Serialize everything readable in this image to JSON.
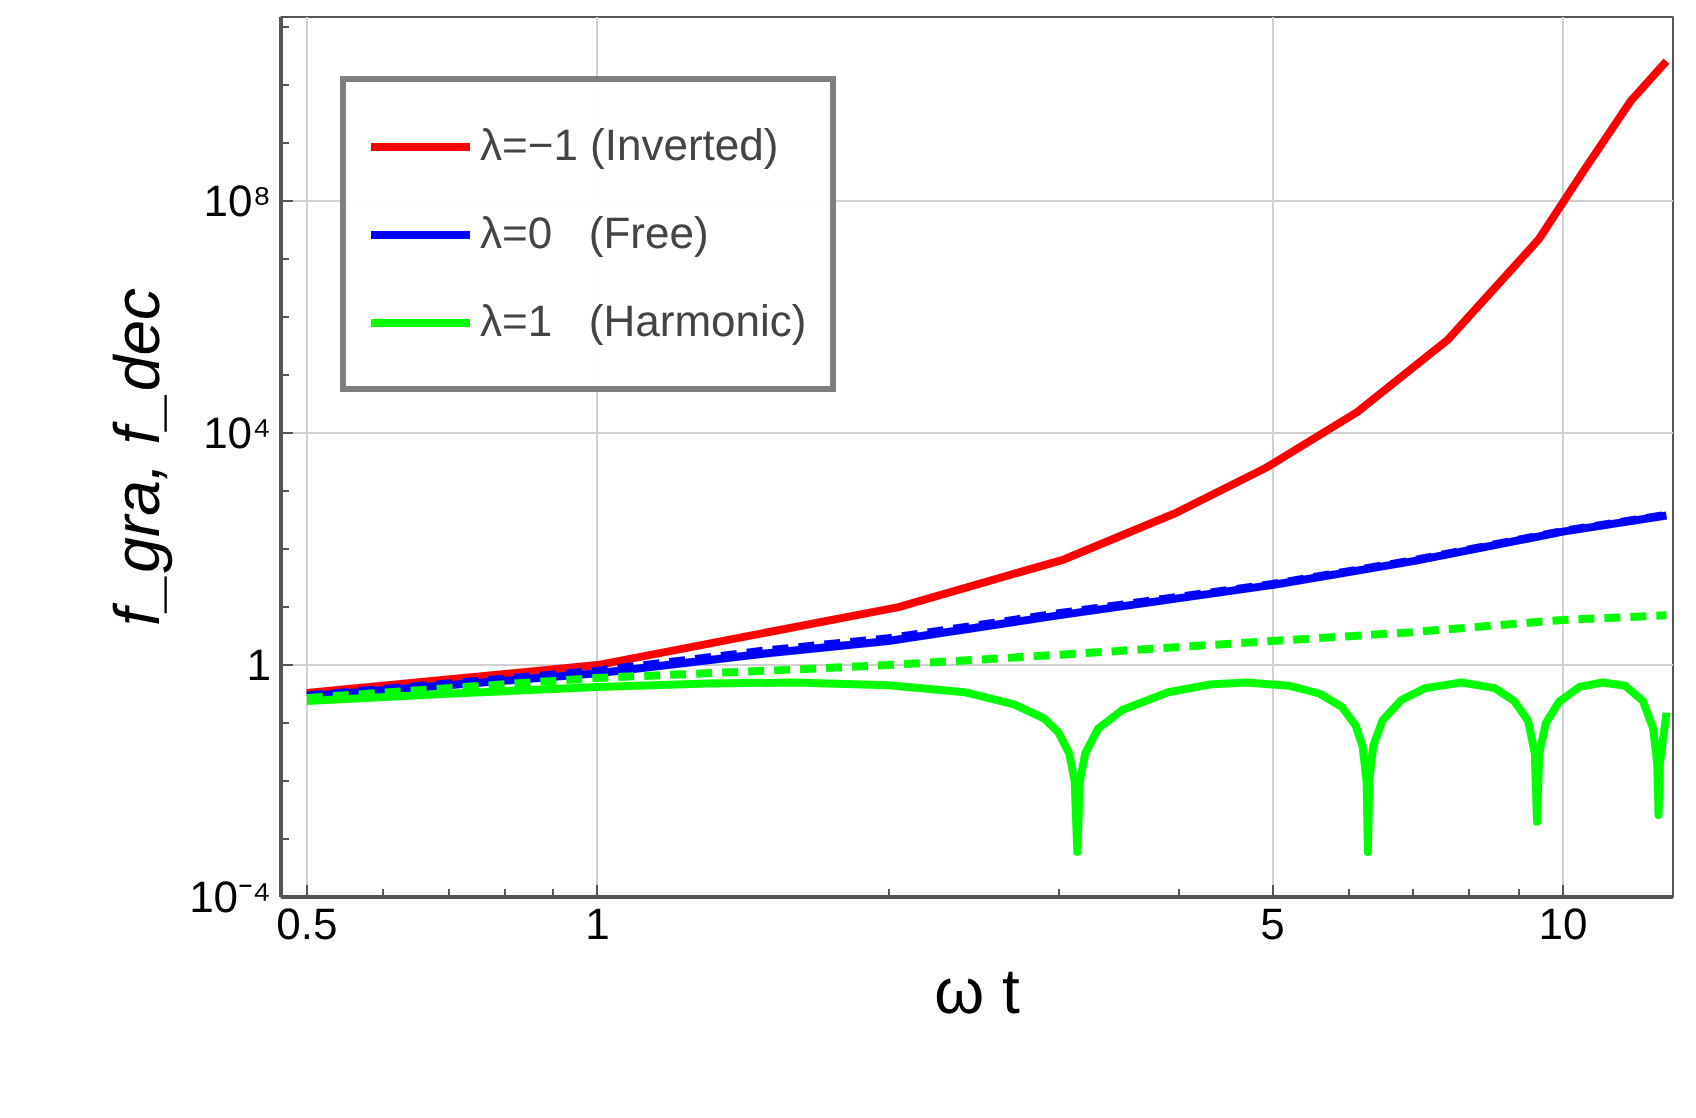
{
  "chart_data": {
    "type": "line",
    "xlabel": "ω t",
    "ylabel": "f_gra, f_dec",
    "log": "xy",
    "grid": true,
    "legend": "top left",
    "xlim": [
      0.47,
      13
    ],
    "ylim": [
      0.0001,
      150000000000
    ],
    "xticks": [
      0.5,
      {
        "value": 0.6,
        "label": null
      },
      {
        "value": 0.7,
        "label": null
      },
      {
        "value": 0.8,
        "label": null
      },
      {
        "value": 0.9,
        "label": null
      },
      1,
      {
        "value": 2,
        "label": null
      },
      {
        "value": 3,
        "label": null
      },
      {
        "value": 4,
        "label": null
      },
      5,
      {
        "value": 6,
        "label": null
      },
      {
        "value": 7,
        "label": null
      },
      {
        "value": 8,
        "label": null
      },
      {
        "value": 9,
        "label": null
      },
      10
    ],
    "yticks": [
      {
        "value": 0.0001,
        "label": "10⁻⁴"
      },
      {
        "value": 0.001,
        "label": null
      },
      {
        "value": 0.01,
        "label": null
      },
      {
        "value": 0.1,
        "label": null
      },
      1,
      {
        "value": 10,
        "label": null
      },
      {
        "value": 100,
        "label": null
      },
      {
        "value": 1000,
        "label": null
      },
      {
        "value": 10000,
        "label": "10⁴"
      },
      {
        "value": 100000,
        "label": null
      },
      {
        "value": 1000000,
        "label": null
      },
      {
        "value": 10000000,
        "label": null
      },
      {
        "value": 100000000,
        "label": "10⁸"
      },
      {
        "value": 1000000000,
        "label": null
      },
      {
        "value": 10000000000,
        "label": null
      },
      {
        "value": 100000000000,
        "label": null
      }
    ],
    "series": [
      {
        "name": "λ=−1 (Inverted)",
        "color": "#ff0000",
        "line_style": "solid",
        "x": [
          0.5,
          1,
          2.05,
          3.04,
          3.96,
          4.92,
          6.12,
          7.59,
          9.44,
          10.5,
          11.75,
          12.8
        ],
        "values": [
          0.33,
          1.0,
          10,
          66,
          410,
          2500,
          23000,
          400000,
          22000000,
          330000000,
          5300000000,
          26000000000
        ]
      },
      {
        "name": "λ=0   (Free)",
        "color": "#0000ff",
        "line_style": "solid",
        "x": [
          0.5,
          0.7,
          1,
          1.5,
          2,
          3,
          5,
          7,
          10,
          12.8
        ],
        "values": [
          0.29,
          0.45,
          0.72,
          1.6,
          2.6,
          7.2,
          24,
          62,
          200,
          380
        ]
      },
      {
        "color": "#0000ff",
        "line_style": "dashed",
        "x": [
          0.5,
          0.7,
          1,
          1.5,
          2,
          3,
          5,
          7,
          10,
          12.8
        ],
        "values": [
          0.3,
          0.48,
          0.8,
          1.8,
          2.9,
          7.8,
          25,
          64,
          205,
          390
        ]
      },
      {
        "name": "λ=1   (Harmonic)",
        "color": "#00ff00",
        "line_style": "solid",
        "x": [
          0.5,
          0.7,
          1,
          1.3,
          1.6,
          2,
          2.4,
          2.7,
          2.9,
          3.0,
          3.08,
          3.12,
          3.14,
          3.16,
          3.2,
          3.3,
          3.5,
          3.9,
          4.3,
          4.7,
          5.2,
          5.6,
          5.9,
          6.1,
          6.2,
          6.26,
          6.28,
          6.3,
          6.36,
          6.5,
          6.8,
          7.2,
          7.85,
          8.5,
          8.9,
          9.2,
          9.35,
          9.4,
          9.45,
          9.6,
          9.9,
          10.4,
          11,
          11.6,
          12.1,
          12.4,
          12.52,
          12.56,
          12.6,
          12.8
        ],
        "values": [
          0.24,
          0.32,
          0.42,
          0.48,
          0.5,
          0.45,
          0.34,
          0.21,
          0.12,
          0.07,
          0.03,
          0.01,
          0.0006,
          0.01,
          0.03,
          0.08,
          0.17,
          0.34,
          0.46,
          0.5,
          0.44,
          0.32,
          0.19,
          0.09,
          0.04,
          0.01,
          0.0006,
          0.01,
          0.04,
          0.11,
          0.25,
          0.4,
          0.5,
          0.4,
          0.24,
          0.11,
          0.03,
          0.002,
          0.03,
          0.1,
          0.23,
          0.42,
          0.5,
          0.44,
          0.24,
          0.08,
          0.02,
          0.0026,
          0.02,
          0.15
        ]
      },
      {
        "color": "#00ff00",
        "line_style": "dashed",
        "x": [
          0.5,
          0.7,
          1,
          1.5,
          2,
          3,
          5,
          7,
          10,
          12.8
        ],
        "values": [
          0.27,
          0.4,
          0.6,
          0.8,
          1.0,
          1.5,
          2.6,
          3.7,
          6,
          7.2
        ]
      }
    ]
  }
}
